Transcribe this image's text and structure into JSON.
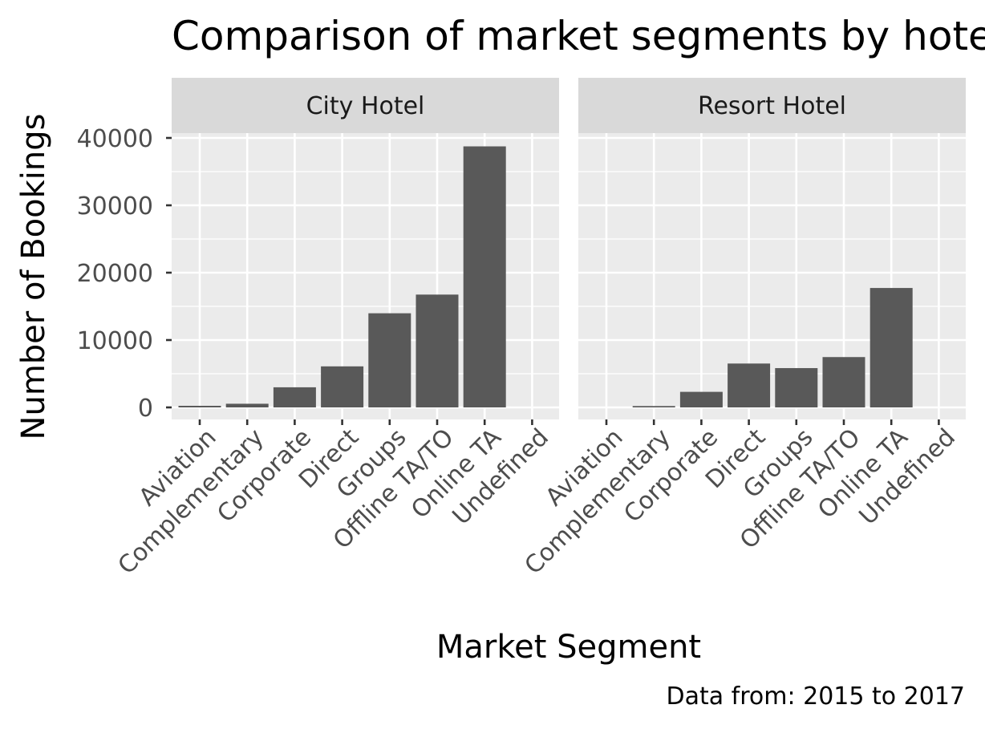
{
  "chart_data": {
    "type": "bar",
    "title": "Comparison of market segments by hotel type",
    "xlabel": "Market Segment",
    "ylabel": "Number of Bookings",
    "caption": "Data from: 2015 to 2017",
    "ylim": [
      0,
      48500
    ],
    "y_ticks": [
      0,
      10000,
      20000,
      30000,
      40000
    ],
    "y_tick_labels": [
      "0",
      "10000",
      "20000",
      "30000",
      "40000"
    ],
    "grid": true,
    "categories": [
      "Aviation",
      "Complementary",
      "Corporate",
      "Direct",
      "Groups",
      "Offline TA/TO",
      "Online TA",
      "Undefined"
    ],
    "bar_color": "#595959",
    "panel_background": "#ebebeb",
    "strip_background": "#d9d9d9",
    "facets": [
      {
        "label": "City Hotel",
        "values": [
          237,
          542,
          2986,
          6093,
          13975,
          16747,
          38748,
          2
        ]
      },
      {
        "label": "Resort Hotel",
        "values": [
          0,
          201,
          2309,
          6513,
          5836,
          7472,
          17729,
          0
        ]
      }
    ]
  }
}
